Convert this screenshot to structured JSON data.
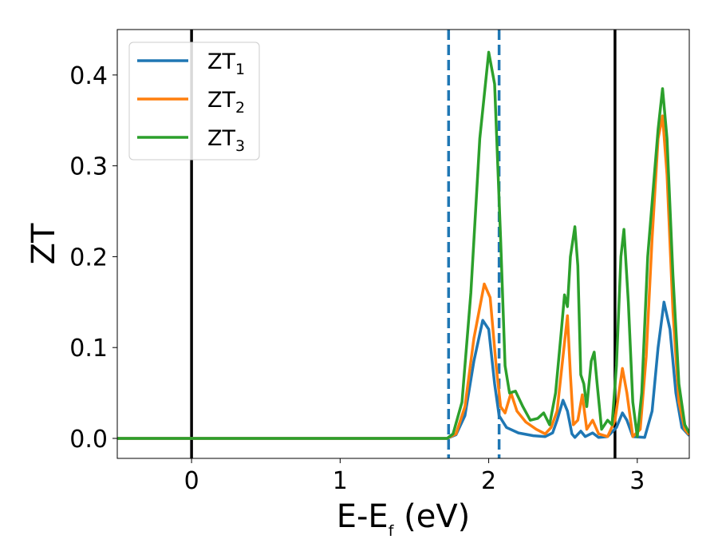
{
  "chart_data": {
    "type": "line",
    "xlabel_main": "E-E",
    "xlabel_sub": "f",
    "xlabel_unit": " (eV)",
    "ylabel": "ZT",
    "xlim": [
      -0.5,
      3.35
    ],
    "ylim": [
      -0.022,
      0.45
    ],
    "xticks": [
      0,
      1,
      2,
      3
    ],
    "xtick_labels": [
      "0",
      "1",
      "2",
      "3"
    ],
    "yticks": [
      0.0,
      0.1,
      0.2,
      0.3,
      0.4
    ],
    "ytick_labels": [
      "0.0",
      "0.1",
      "0.2",
      "0.3",
      "0.4"
    ],
    "grid": false,
    "legend_position": "top-left",
    "vertical_lines": [
      {
        "x": 0.0,
        "color": "#000000",
        "style": "solid"
      },
      {
        "x": 2.85,
        "color": "#000000",
        "style": "solid"
      },
      {
        "x": 1.73,
        "color": "#1f77b4",
        "style": "dashed"
      },
      {
        "x": 2.07,
        "color": "#1f77b4",
        "style": "dashed"
      }
    ],
    "series": [
      {
        "name": "ZT",
        "subscript": "1",
        "color": "#1f77b4",
        "points": [
          [
            -0.5,
            0
          ],
          [
            1.72,
            0
          ],
          [
            1.78,
            0.004
          ],
          [
            1.84,
            0.025
          ],
          [
            1.9,
            0.085
          ],
          [
            1.96,
            0.13
          ],
          [
            2.0,
            0.12
          ],
          [
            2.04,
            0.06
          ],
          [
            2.07,
            0.025
          ],
          [
            2.12,
            0.012
          ],
          [
            2.2,
            0.006
          ],
          [
            2.3,
            0.003
          ],
          [
            2.38,
            0.002
          ],
          [
            2.43,
            0.006
          ],
          [
            2.46,
            0.02
          ],
          [
            2.5,
            0.042
          ],
          [
            2.53,
            0.03
          ],
          [
            2.56,
            0.005
          ],
          [
            2.58,
            0.001
          ],
          [
            2.62,
            0.008
          ],
          [
            2.65,
            0.002
          ],
          [
            2.7,
            0.006
          ],
          [
            2.74,
            0.001
          ],
          [
            2.8,
            0.002
          ],
          [
            2.86,
            0.012
          ],
          [
            2.9,
            0.028
          ],
          [
            2.93,
            0.02
          ],
          [
            2.97,
            0.002
          ],
          [
            3.05,
            0.001
          ],
          [
            3.1,
            0.03
          ],
          [
            3.14,
            0.1
          ],
          [
            3.18,
            0.15
          ],
          [
            3.22,
            0.12
          ],
          [
            3.26,
            0.05
          ],
          [
            3.3,
            0.012
          ],
          [
            3.35,
            0.003
          ]
        ]
      },
      {
        "name": "ZT",
        "subscript": "2",
        "color": "#ff7f0e",
        "points": [
          [
            -0.5,
            0
          ],
          [
            1.72,
            0
          ],
          [
            1.78,
            0.005
          ],
          [
            1.84,
            0.035
          ],
          [
            1.9,
            0.11
          ],
          [
            1.97,
            0.17
          ],
          [
            2.01,
            0.155
          ],
          [
            2.05,
            0.08
          ],
          [
            2.08,
            0.035
          ],
          [
            2.11,
            0.028
          ],
          [
            2.15,
            0.05
          ],
          [
            2.19,
            0.03
          ],
          [
            2.25,
            0.018
          ],
          [
            2.32,
            0.01
          ],
          [
            2.38,
            0.005
          ],
          [
            2.42,
            0.012
          ],
          [
            2.46,
            0.03
          ],
          [
            2.5,
            0.09
          ],
          [
            2.53,
            0.135
          ],
          [
            2.55,
            0.07
          ],
          [
            2.57,
            0.015
          ],
          [
            2.6,
            0.02
          ],
          [
            2.63,
            0.048
          ],
          [
            2.66,
            0.01
          ],
          [
            2.7,
            0.02
          ],
          [
            2.74,
            0.005
          ],
          [
            2.8,
            0.002
          ],
          [
            2.85,
            0.02
          ],
          [
            2.9,
            0.077
          ],
          [
            2.93,
            0.05
          ],
          [
            2.97,
            0.002
          ],
          [
            3.02,
            0.01
          ],
          [
            3.06,
            0.09
          ],
          [
            3.1,
            0.22
          ],
          [
            3.14,
            0.33
          ],
          [
            3.17,
            0.355
          ],
          [
            3.2,
            0.29
          ],
          [
            3.24,
            0.14
          ],
          [
            3.28,
            0.04
          ],
          [
            3.32,
            0.01
          ],
          [
            3.35,
            0.004
          ]
        ]
      },
      {
        "name": "ZT",
        "subscript": "3",
        "color": "#2ca02c",
        "points": [
          [
            -0.5,
            0
          ],
          [
            1.72,
            0
          ],
          [
            1.76,
            0.005
          ],
          [
            1.82,
            0.04
          ],
          [
            1.88,
            0.16
          ],
          [
            1.94,
            0.33
          ],
          [
            2.0,
            0.425
          ],
          [
            2.04,
            0.39
          ],
          [
            2.08,
            0.22
          ],
          [
            2.11,
            0.08
          ],
          [
            2.14,
            0.05
          ],
          [
            2.18,
            0.052
          ],
          [
            2.23,
            0.035
          ],
          [
            2.28,
            0.02
          ],
          [
            2.33,
            0.022
          ],
          [
            2.37,
            0.028
          ],
          [
            2.41,
            0.015
          ],
          [
            2.45,
            0.05
          ],
          [
            2.49,
            0.12
          ],
          [
            2.51,
            0.158
          ],
          [
            2.53,
            0.145
          ],
          [
            2.55,
            0.2
          ],
          [
            2.58,
            0.233
          ],
          [
            2.6,
            0.19
          ],
          [
            2.62,
            0.07
          ],
          [
            2.64,
            0.06
          ],
          [
            2.66,
            0.035
          ],
          [
            2.69,
            0.085
          ],
          [
            2.71,
            0.095
          ],
          [
            2.73,
            0.06
          ],
          [
            2.76,
            0.01
          ],
          [
            2.8,
            0.02
          ],
          [
            2.83,
            0.015
          ],
          [
            2.86,
            0.08
          ],
          [
            2.89,
            0.2
          ],
          [
            2.91,
            0.23
          ],
          [
            2.94,
            0.15
          ],
          [
            2.97,
            0.04
          ],
          [
            3.0,
            0.002
          ],
          [
            3.03,
            0.05
          ],
          [
            3.07,
            0.2
          ],
          [
            3.11,
            0.28
          ],
          [
            3.14,
            0.34
          ],
          [
            3.17,
            0.385
          ],
          [
            3.2,
            0.33
          ],
          [
            3.24,
            0.18
          ],
          [
            3.28,
            0.06
          ],
          [
            3.32,
            0.015
          ],
          [
            3.35,
            0.006
          ]
        ]
      }
    ]
  }
}
